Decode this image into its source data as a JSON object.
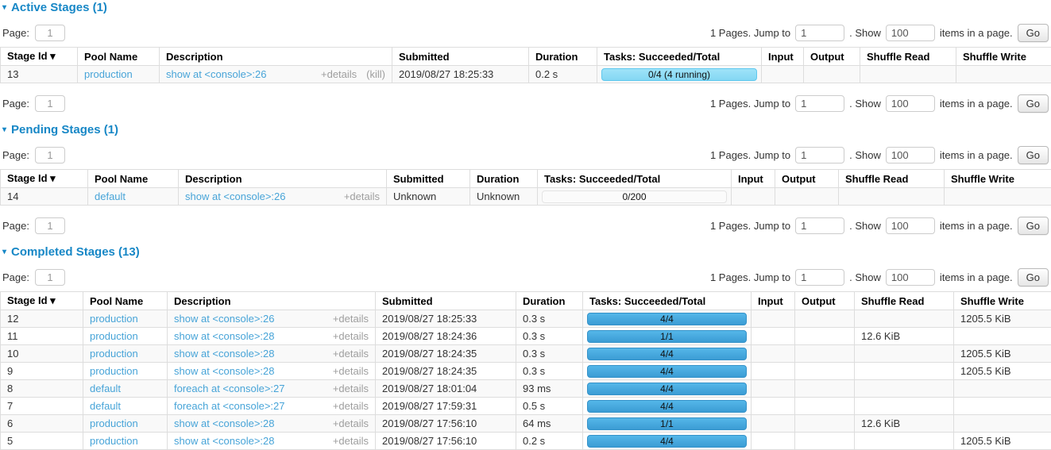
{
  "pager": {
    "page_label": "Page:",
    "page_value": "1",
    "pages_jump_text": "1 Pages. Jump to",
    "jump_value": "1",
    "show_text": ". Show",
    "show_value": "100",
    "items_text": "items in a page.",
    "go_label": "Go"
  },
  "colors": {
    "heading_blue": "#1787c6",
    "link_blue": "#47a4d8",
    "bar_running": "#8edcf6",
    "bar_completed": "#3b9cd4",
    "row_stripe": "#f9f9f9"
  },
  "collapse_arrow": "▾",
  "sections": {
    "active": {
      "title": "Active Stages (1)",
      "columns": [
        "Stage Id  ▾",
        "Pool Name",
        "Description",
        "Submitted",
        "Duration",
        "Tasks: Succeeded/Total",
        "Input",
        "Output",
        "Shuffle Read",
        "Shuffle Write"
      ],
      "rows": [
        {
          "stage_id": "13",
          "pool": "production",
          "desc": "show at <console>:26",
          "details": "+details",
          "kill": "(kill)",
          "submitted": "2019/08/27 18:25:33",
          "duration": "0.2 s",
          "tasks": {
            "label": "0/4 (4 running)",
            "kind": "running"
          },
          "input": "",
          "output": "",
          "shuffle_read": "",
          "shuffle_write": ""
        }
      ]
    },
    "pending": {
      "title": "Pending Stages (1)",
      "columns": [
        "Stage Id  ▾",
        "Pool Name",
        "Description",
        "Submitted",
        "Duration",
        "Tasks: Succeeded/Total",
        "Input",
        "Output",
        "Shuffle Read",
        "Shuffle Write"
      ],
      "rows": [
        {
          "stage_id": "14",
          "pool": "default",
          "desc": "show at <console>:26",
          "details": "+details",
          "kill": "",
          "submitted": "Unknown",
          "duration": "Unknown",
          "tasks": {
            "label": "0/200",
            "kind": "empty"
          },
          "input": "",
          "output": "",
          "shuffle_read": "",
          "shuffle_write": ""
        }
      ]
    },
    "completed": {
      "title": "Completed Stages (13)",
      "columns": [
        "Stage Id  ▾",
        "Pool Name",
        "Description",
        "Submitted",
        "Duration",
        "Tasks: Succeeded/Total",
        "Input",
        "Output",
        "Shuffle Read",
        "Shuffle Write"
      ],
      "rows": [
        {
          "stage_id": "12",
          "pool": "production",
          "desc": "show at <console>:26",
          "details": "+details",
          "kill": "",
          "submitted": "2019/08/27 18:25:33",
          "duration": "0.3 s",
          "tasks": {
            "label": "4/4",
            "kind": "done"
          },
          "input": "",
          "output": "",
          "shuffle_read": "",
          "shuffle_write": "1205.5 KiB"
        },
        {
          "stage_id": "11",
          "pool": "production",
          "desc": "show at <console>:28",
          "details": "+details",
          "kill": "",
          "submitted": "2019/08/27 18:24:36",
          "duration": "0.3 s",
          "tasks": {
            "label": "1/1",
            "kind": "done"
          },
          "input": "",
          "output": "",
          "shuffle_read": "12.6 KiB",
          "shuffle_write": ""
        },
        {
          "stage_id": "10",
          "pool": "production",
          "desc": "show at <console>:28",
          "details": "+details",
          "kill": "",
          "submitted": "2019/08/27 18:24:35",
          "duration": "0.3 s",
          "tasks": {
            "label": "4/4",
            "kind": "done"
          },
          "input": "",
          "output": "",
          "shuffle_read": "",
          "shuffle_write": "1205.5 KiB"
        },
        {
          "stage_id": "9",
          "pool": "production",
          "desc": "show at <console>:28",
          "details": "+details",
          "kill": "",
          "submitted": "2019/08/27 18:24:35",
          "duration": "0.3 s",
          "tasks": {
            "label": "4/4",
            "kind": "done"
          },
          "input": "",
          "output": "",
          "shuffle_read": "",
          "shuffle_write": "1205.5 KiB"
        },
        {
          "stage_id": "8",
          "pool": "default",
          "desc": "foreach at <console>:27",
          "details": "+details",
          "kill": "",
          "submitted": "2019/08/27 18:01:04",
          "duration": "93 ms",
          "tasks": {
            "label": "4/4",
            "kind": "done"
          },
          "input": "",
          "output": "",
          "shuffle_read": "",
          "shuffle_write": ""
        },
        {
          "stage_id": "7",
          "pool": "default",
          "desc": "foreach at <console>:27",
          "details": "+details",
          "kill": "",
          "submitted": "2019/08/27 17:59:31",
          "duration": "0.5 s",
          "tasks": {
            "label": "4/4",
            "kind": "done"
          },
          "input": "",
          "output": "",
          "shuffle_read": "",
          "shuffle_write": ""
        },
        {
          "stage_id": "6",
          "pool": "production",
          "desc": "show at <console>:28",
          "details": "+details",
          "kill": "",
          "submitted": "2019/08/27 17:56:10",
          "duration": "64 ms",
          "tasks": {
            "label": "1/1",
            "kind": "done"
          },
          "input": "",
          "output": "",
          "shuffle_read": "12.6 KiB",
          "shuffle_write": ""
        },
        {
          "stage_id": "5",
          "pool": "production",
          "desc": "show at <console>:28",
          "details": "+details",
          "kill": "",
          "submitted": "2019/08/27 17:56:10",
          "duration": "0.2 s",
          "tasks": {
            "label": "4/4",
            "kind": "done"
          },
          "input": "",
          "output": "",
          "shuffle_read": "",
          "shuffle_write": "1205.5 KiB"
        }
      ]
    }
  }
}
